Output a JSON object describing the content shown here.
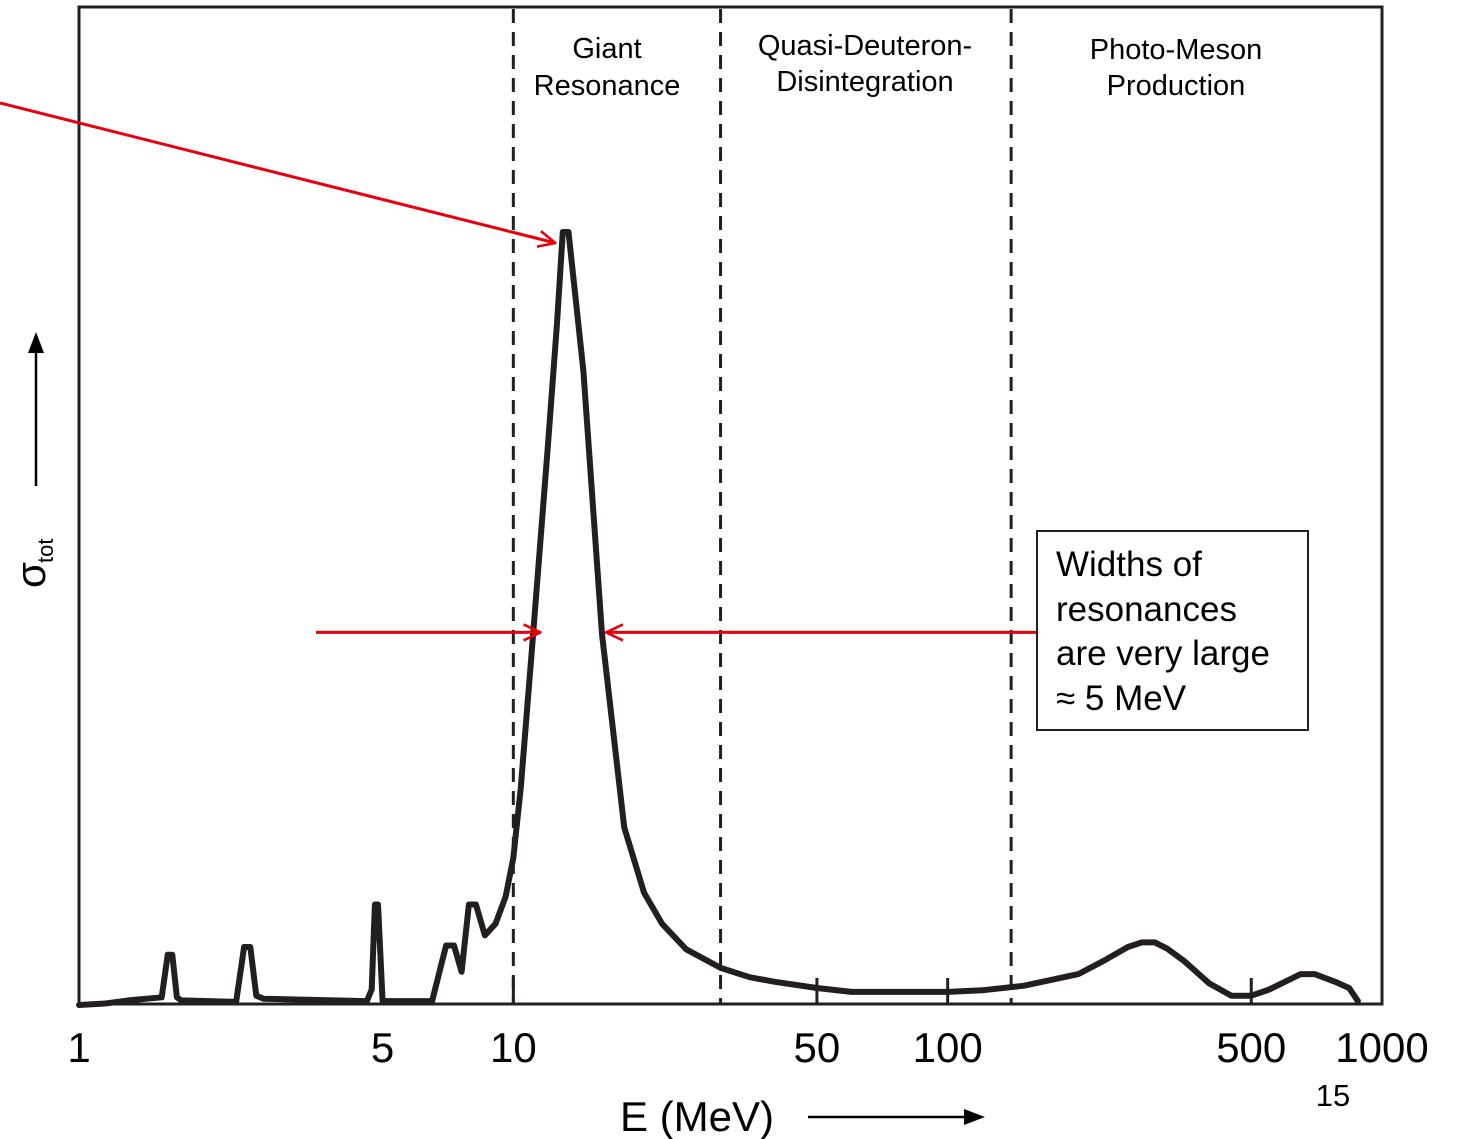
{
  "chart_data": {
    "type": "line",
    "x_scale": "log",
    "xlabel": "E (MeV)",
    "ylabel": {
      "symbol": "σ",
      "subscript": "tot"
    },
    "xlim": [
      1,
      1000
    ],
    "x_ticks": [
      {
        "value": 1,
        "label": "1"
      },
      {
        "value": 5,
        "label": "5"
      },
      {
        "value": 10,
        "label": "10"
      },
      {
        "value": 50,
        "label": "50"
      },
      {
        "value": 100,
        "label": "100"
      },
      {
        "value": 500,
        "label": "500"
      },
      {
        "value": 1000,
        "label": "1000"
      }
    ],
    "region_boundaries_mev": [
      10,
      30,
      140
    ],
    "regions": [
      {
        "lines": [
          "Giant",
          "Resonance"
        ]
      },
      {
        "lines": [
          "Quasi-Deuteron-",
          "Disintegration"
        ]
      },
      {
        "lines": [
          "Photo-Meson",
          "Production"
        ]
      }
    ],
    "series": [
      {
        "x": [
          1.0,
          1.15,
          1.3,
          1.55,
          1.6,
          1.64,
          1.68,
          1.72,
          2.3,
          2.4,
          2.48,
          2.56,
          2.66,
          4.6,
          4.72,
          4.8,
          4.88,
          5.0,
          6.5,
          7.0,
          7.3,
          7.6,
          7.9,
          8.2,
          8.6,
          9.1,
          9.6,
          10.0,
          10.4,
          11.0,
          12.0,
          12.6,
          13.0,
          13.4,
          14.5,
          16.0,
          18.0,
          20.0,
          22.0,
          25.0,
          30.0,
          35.0,
          40.0,
          50.0,
          60.0,
          80.0,
          100.0,
          120.0,
          150.0,
          200.0,
          230.0,
          260.0,
          280.0,
          300.0,
          320.0,
          350.0,
          400.0,
          450.0,
          500.0,
          550.0,
          650.0,
          700.0,
          780.0,
          840.0,
          880.0
        ],
        "y": [
          0.0,
          0.002,
          0.006,
          0.01,
          0.065,
          0.065,
          0.01,
          0.006,
          0.004,
          0.075,
          0.075,
          0.012,
          0.008,
          0.005,
          0.02,
          0.13,
          0.13,
          0.005,
          0.005,
          0.077,
          0.077,
          0.043,
          0.13,
          0.13,
          0.09,
          0.105,
          0.14,
          0.19,
          0.28,
          0.45,
          0.72,
          0.88,
          1.0,
          1.0,
          0.82,
          0.48,
          0.23,
          0.145,
          0.105,
          0.072,
          0.048,
          0.036,
          0.03,
          0.022,
          0.017,
          0.017,
          0.017,
          0.019,
          0.025,
          0.04,
          0.058,
          0.075,
          0.081,
          0.081,
          0.073,
          0.057,
          0.028,
          0.012,
          0.012,
          0.02,
          0.04,
          0.04,
          0.03,
          0.022,
          0.005
        ]
      }
    ],
    "annotations": {
      "callout_box": [
        "Widths of",
        "resonances",
        "are very large",
        "≈ 5 MeV"
      ],
      "fwhm_level": 0.482,
      "fwhm_left_mev": 11.8,
      "fwhm_right_mev": 16.0,
      "peak_arrow_target_mev": 12.7,
      "page_number": "15"
    },
    "colors": {
      "curve": "#231f20",
      "axes": "#231f20",
      "annotation": "#e8000c"
    }
  }
}
